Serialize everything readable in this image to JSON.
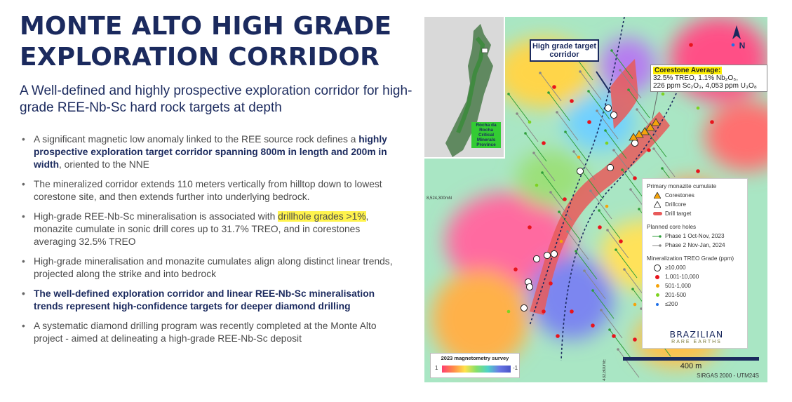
{
  "slide": {
    "title_line1": "MONTE ALTO HIGH GRADE",
    "title_line2": "EXPLORATION CORRIDOR",
    "subtitle": "A Well-defined and highly prospective exploration corridor for high-grade REE-Nb-Sc hard rock targets at depth"
  },
  "bullets": [
    {
      "pre": "A significant magnetic low anomaly linked to the REE source rock defines a ",
      "bold": "highly prospective exploration target corridor spanning 800m in length and 200m in width",
      "post": ", oriented to the NNE"
    },
    {
      "text": "The mineralized corridor extends 110 meters vertically from hilltop down to lowest corestone site, and then extends further into underlying bedrock."
    },
    {
      "pre": "High-grade REE-Nb-Sc mineralisation is associated with ",
      "highlight": "drillhole grades >1%",
      "post": ", monazite cumulate in sonic drill cores up to 31.7% TREO, and in corestones averaging 32.5% TREO"
    },
    {
      "text": "High-grade mineralisation and monazite cumulates align along distinct linear trends, projected along the strike and into bedrock"
    },
    {
      "text": "The well-defined exploration corridor and linear REE-Nb-Sc mineralisation trends represent high-confidence targets for deeper diamond drilling"
    },
    {
      "text": "A systematic diamond drilling program was recently completed at the Monte Alto project - aimed at delineating a high-grade REE-Nb-Sc deposit"
    }
  ],
  "map": {
    "inset_label": "Rocha da Rocha Critical Minerals Province",
    "callout_target": "High grade target corridor",
    "corestone_heading": "Corestone Average:",
    "corestone_line1": "32.5% TREO, 1.1% Nb₂O₅,",
    "corestone_line2": "226 ppm Sc₂O₃, 4,053 ppm U₃O₈",
    "north_label": "N",
    "coord_left": "8,524,300mN",
    "coord_bottom": "432,800mE",
    "legend": {
      "h1": "Primary monazite cumulate",
      "corestones": "Corestones",
      "drillcore": "Drillcore",
      "drill_target": "Drill target",
      "h2": "Planned core holes",
      "phase1": "Phase 1 Oct-Nov, 2023",
      "phase2": "Phase 2 Nov-Jan, 2024",
      "h3": "Mineralization TREO Grade (ppm)",
      "g1": "≥10,000",
      "g2": "1,001-10,000",
      "g3": "501-1,000",
      "g4": "201-500",
      "g5": "≤200"
    },
    "brand_top": "BRAZILIAN",
    "brand_bottom": "RARE EARTHS",
    "mag_title": "2023 magnetometry survey",
    "mag_low": "1",
    "mag_high": "-1",
    "scale_label": "400 m",
    "crs_label": "SIRGAS 2000 - UTM24S"
  },
  "colors": {
    "navy": "#1b2a5e",
    "highlight": "#fff34d",
    "grade_red": "#e8141c",
    "grade_orange": "#f5a30a",
    "grade_green": "#7ed321",
    "grade_blue": "#1f6fe8",
    "drill_target": "#e85a5a",
    "phase1": "#2e9e3a",
    "phase2": "#888888"
  }
}
